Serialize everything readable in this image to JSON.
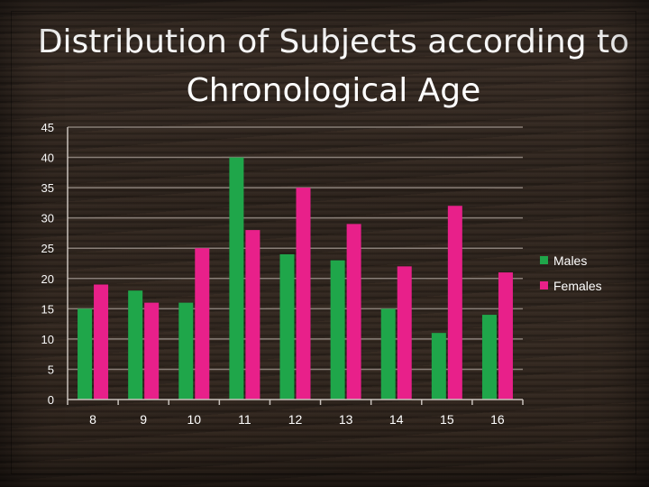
{
  "chart_data": {
    "type": "bar",
    "title": "Distribution of Subjects according to Chronological Age",
    "categories": [
      "8",
      "9",
      "10",
      "11",
      "12",
      "13",
      "14",
      "15",
      "16"
    ],
    "series": [
      {
        "name": "Males",
        "color": "#1fa64a",
        "values": [
          15,
          18,
          16,
          40,
          24,
          23,
          15,
          11,
          14
        ]
      },
      {
        "name": "Females",
        "color": "#e8208a",
        "values": [
          19,
          16,
          25,
          28,
          35,
          29,
          22,
          32,
          21
        ]
      }
    ],
    "ylim": [
      0,
      45
    ],
    "yticks": [
      "0",
      "5",
      "10",
      "15",
      "20",
      "25",
      "30",
      "35",
      "40",
      "45"
    ],
    "grid": true,
    "legend_position": "right"
  }
}
